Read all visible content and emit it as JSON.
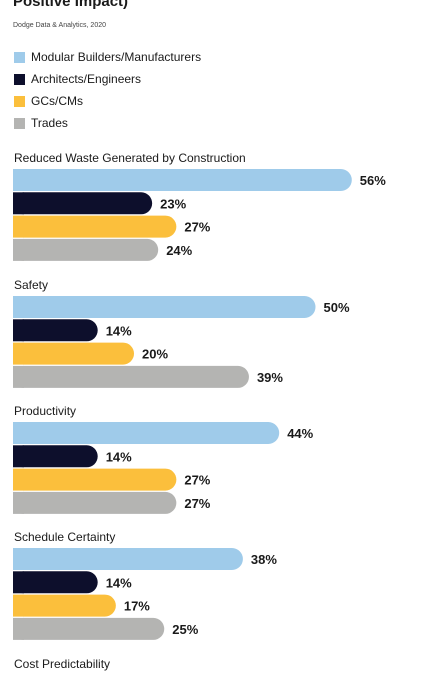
{
  "title": "Positive Impact)",
  "source": "Dodge Data & Analytics, 2020",
  "colors": {
    "modular": "#9fcbea",
    "architects": "#0d0f2c",
    "gcs": "#fbbf3c",
    "trades": "#b4b4b2"
  },
  "chart_data": {
    "type": "bar",
    "orientation": "horizontal",
    "categories": [
      "Reduced Waste Generated by Construction",
      "Safety",
      "Productivity",
      "Schedule Certainty",
      "Cost Predictability"
    ],
    "series": [
      {
        "name": "Modular Builders/Manufacturers",
        "values": [
          56,
          50,
          44,
          38,
          null
        ]
      },
      {
        "name": "Architects/Engineers",
        "values": [
          23,
          14,
          14,
          14,
          null
        ]
      },
      {
        "name": "GCs/CMs",
        "values": [
          27,
          20,
          27,
          17,
          null
        ]
      },
      {
        "name": "Trades",
        "values": [
          24,
          39,
          27,
          25,
          null
        ]
      }
    ],
    "value_labels": [
      [
        "56%",
        "23%",
        "27%",
        "24%"
      ],
      [
        "50%",
        "14%",
        "20%",
        "39%"
      ],
      [
        "44%",
        "14%",
        "27%",
        "27%"
      ],
      [
        "38%",
        "14%",
        "17%",
        "25%"
      ],
      []
    ],
    "unit": "%",
    "legend_position": "top-left",
    "grid": false
  }
}
